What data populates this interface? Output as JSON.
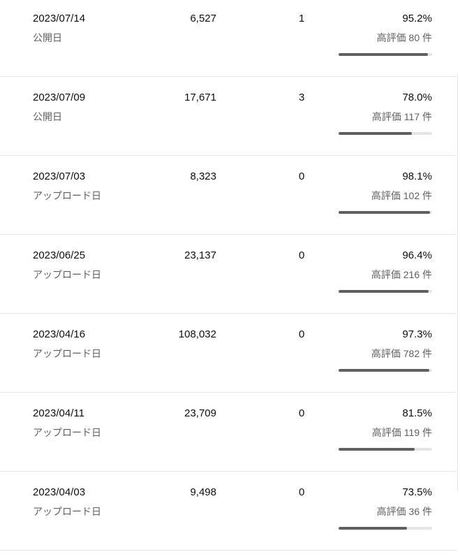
{
  "table": {
    "rows": [
      {
        "date": "2023/07/14",
        "date_label": "公開日",
        "views": "6,527",
        "comments": "1",
        "like_ratio": {
          "value": 95.2,
          "label": "95.2%"
        },
        "likes": "高評価 80 件"
      },
      {
        "date": "2023/07/09",
        "date_label": "公開日",
        "views": "17,671",
        "comments": "3",
        "like_ratio": {
          "value": 78.0,
          "label": "78.0%"
        },
        "likes": "高評価 117 件"
      },
      {
        "date": "2023/07/03",
        "date_label": "アップロード日",
        "views": "8,323",
        "comments": "0",
        "like_ratio": {
          "value": 98.1,
          "label": "98.1%"
        },
        "likes": "高評価 102 件"
      },
      {
        "date": "2023/06/25",
        "date_label": "アップロード日",
        "views": "23,137",
        "comments": "0",
        "like_ratio": {
          "value": 96.4,
          "label": "96.4%"
        },
        "likes": "高評価 216 件"
      },
      {
        "date": "2023/04/16",
        "date_label": "アップロード日",
        "views": "108,032",
        "comments": "0",
        "like_ratio": {
          "value": 97.3,
          "label": "97.3%"
        },
        "likes": "高評価 782 件"
      },
      {
        "date": "2023/04/11",
        "date_label": "アップロード日",
        "views": "23,709",
        "comments": "0",
        "like_ratio": {
          "value": 81.5,
          "label": "81.5%"
        },
        "likes": "高評価 119 件"
      },
      {
        "date": "2023/04/03",
        "date_label": "アップロード日",
        "views": "9,498",
        "comments": "0",
        "like_ratio": {
          "value": 73.5,
          "label": "73.5%"
        },
        "likes": "高評価 36 件"
      }
    ]
  }
}
